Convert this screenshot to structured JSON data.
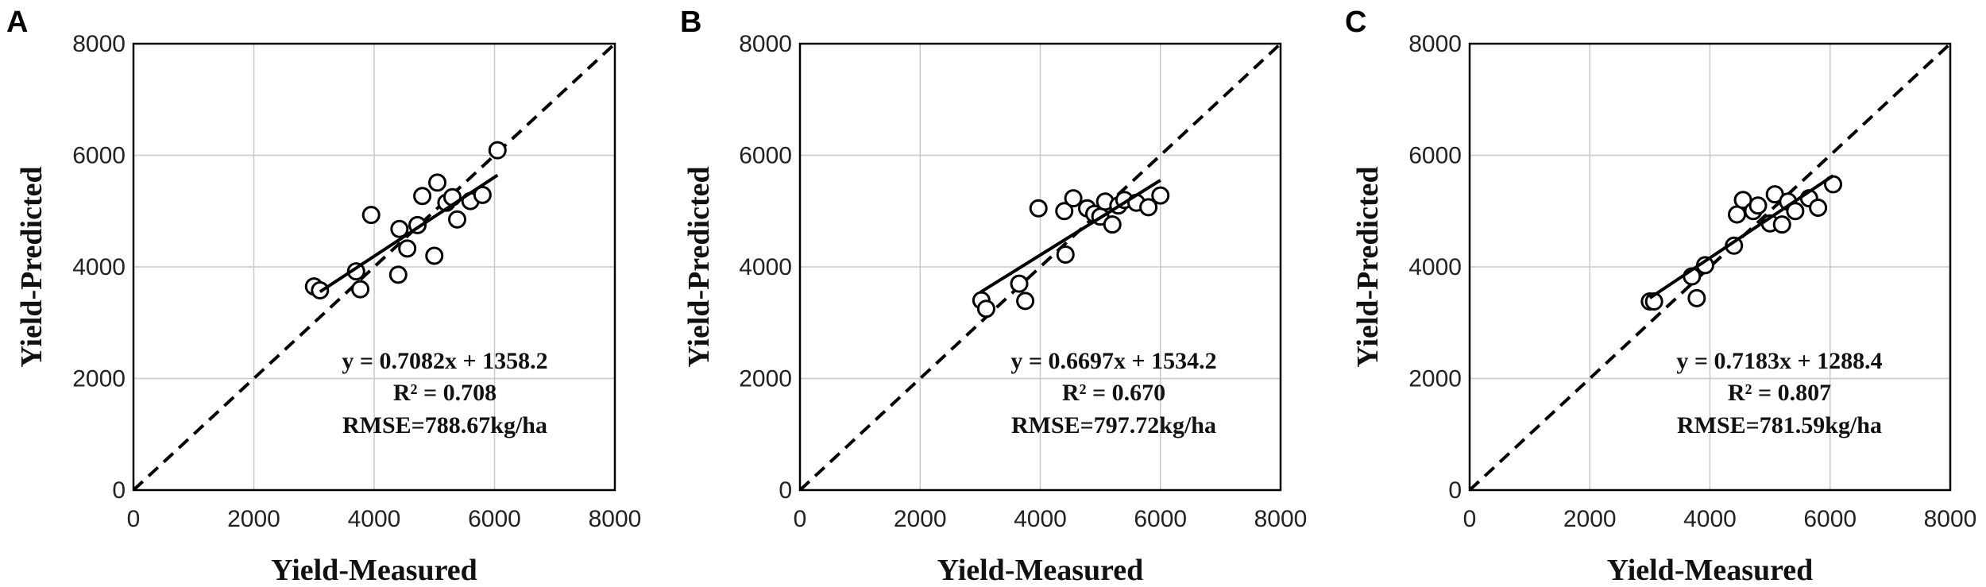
{
  "chart_data": [
    {
      "type": "scatter",
      "panel": "A",
      "xlabel": "Yield-Measured",
      "ylabel": "Yield-Predicted",
      "xlim": [
        0,
        8000
      ],
      "ylim": [
        0,
        8000
      ],
      "xticks": [
        "0",
        "2000",
        "4000",
        "6000",
        "8000"
      ],
      "yticks": [
        "0",
        "2000",
        "4000",
        "6000",
        "8000"
      ],
      "grid": true,
      "points": [
        [
          3000,
          3650
        ],
        [
          3100,
          3580
        ],
        [
          3700,
          3920
        ],
        [
          3770,
          3600
        ],
        [
          3950,
          4930
        ],
        [
          4400,
          3860
        ],
        [
          4420,
          4680
        ],
        [
          4550,
          4330
        ],
        [
          4720,
          4750
        ],
        [
          4800,
          5270
        ],
        [
          5000,
          4200
        ],
        [
          5050,
          5510
        ],
        [
          5200,
          5150
        ],
        [
          5300,
          5250
        ],
        [
          5380,
          4850
        ],
        [
          5600,
          5180
        ],
        [
          5800,
          5290
        ],
        [
          6050,
          6090
        ]
      ],
      "fit": {
        "slope": 0.7082,
        "intercept": 1358.2,
        "x_range": [
          3100,
          6050
        ]
      },
      "reference_line": "1:1",
      "annotations": [
        "y = 0.7082x + 1358.2",
        "R² = 0.708",
        "RMSE=788.67kg/ha"
      ]
    },
    {
      "type": "scatter",
      "panel": "B",
      "xlabel": "Yield-Measured",
      "ylabel": "Yield-Predicted",
      "xlim": [
        0,
        8000
      ],
      "ylim": [
        0,
        8000
      ],
      "xticks": [
        "0",
        "2000",
        "4000",
        "6000",
        "8000"
      ],
      "yticks": [
        "0",
        "2000",
        "4000",
        "6000",
        "8000"
      ],
      "grid": true,
      "points": [
        [
          3020,
          3400
        ],
        [
          3100,
          3250
        ],
        [
          3650,
          3700
        ],
        [
          3750,
          3390
        ],
        [
          3970,
          5050
        ],
        [
          4400,
          5000
        ],
        [
          4420,
          4220
        ],
        [
          4550,
          5230
        ],
        [
          4780,
          5050
        ],
        [
          4900,
          4950
        ],
        [
          5000,
          4900
        ],
        [
          5080,
          5170
        ],
        [
          5200,
          4760
        ],
        [
          5300,
          5100
        ],
        [
          5400,
          5200
        ],
        [
          5600,
          5150
        ],
        [
          5800,
          5070
        ],
        [
          6000,
          5280
        ]
      ],
      "fit": {
        "slope": 0.6697,
        "intercept": 1534.2,
        "x_range": [
          3000,
          6000
        ]
      },
      "reference_line": "1:1",
      "annotations": [
        "y = 0.6697x + 1534.2",
        "R² = 0.670",
        "RMSE=797.72kg/ha"
      ]
    },
    {
      "type": "scatter",
      "panel": "C",
      "xlabel": "Yield-Measured",
      "ylabel": "Yield-Predicted",
      "xlim": [
        0,
        8000
      ],
      "ylim": [
        0,
        8000
      ],
      "xticks": [
        "0",
        "2000",
        "4000",
        "6000",
        "8000"
      ],
      "yticks": [
        "0",
        "2000",
        "4000",
        "6000",
        "8000"
      ],
      "grid": true,
      "points": [
        [
          3000,
          3380
        ],
        [
          3070,
          3380
        ],
        [
          3700,
          3830
        ],
        [
          3780,
          3440
        ],
        [
          3920,
          4030
        ],
        [
          4400,
          4380
        ],
        [
          4450,
          4940
        ],
        [
          4550,
          5200
        ],
        [
          4720,
          5000
        ],
        [
          4800,
          5100
        ],
        [
          5000,
          4780
        ],
        [
          5080,
          5300
        ],
        [
          5200,
          4760
        ],
        [
          5300,
          5170
        ],
        [
          5420,
          5000
        ],
        [
          5650,
          5230
        ],
        [
          5800,
          5060
        ],
        [
          6050,
          5480
        ]
      ],
      "fit": {
        "slope": 0.7183,
        "intercept": 1288.4,
        "x_range": [
          3000,
          6050
        ]
      },
      "reference_line": "1:1",
      "annotations": [
        "y = 0.7183x + 1288.4",
        "R² = 0.807",
        "RMSE=781.59kg/ha"
      ]
    }
  ]
}
